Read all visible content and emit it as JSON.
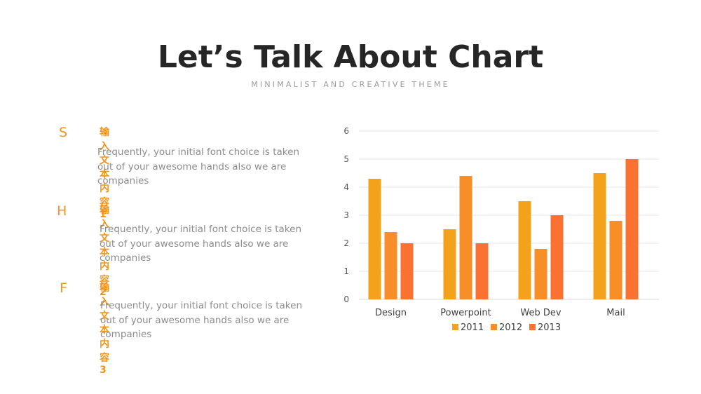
{
  "header": {
    "title": "Let’s Talk About Chart",
    "subtitle": "MINIMALIST AND CREATIVE THEME"
  },
  "items": [
    {
      "letter": "S",
      "heading": "输入文本内容 1",
      "text": "Frequently, your initial font choice is taken out of your awesome hands also we are companies"
    },
    {
      "letter": "H",
      "heading": "输入文本内容 2",
      "text": "Frequently, your initial font choice is taken out of your awesome hands also we are companies"
    },
    {
      "letter": "F",
      "heading": "输入文本内容 3",
      "text": "Frequently, your initial font choice is taken out of your awesome hands also we are companies"
    }
  ],
  "colors": {
    "accent": "#f3941a",
    "series": [
      "#f4a11b",
      "#f78e28",
      "#fb7131"
    ]
  },
  "chart_data": {
    "type": "bar",
    "categories": [
      "Design",
      "Powerpoint",
      "Web Dev",
      "Mail"
    ],
    "series": [
      {
        "name": "2011",
        "values": [
          4.3,
          2.5,
          3.5,
          4.5
        ]
      },
      {
        "name": "2012",
        "values": [
          2.4,
          4.4,
          1.8,
          2.8
        ]
      },
      {
        "name": "2013",
        "values": [
          2.0,
          2.0,
          3.0,
          5.0
        ]
      }
    ],
    "ylim": [
      0,
      6
    ],
    "yticks": [
      0,
      1,
      2,
      3,
      4,
      5,
      6
    ],
    "grid": true,
    "legend": "bottom"
  }
}
